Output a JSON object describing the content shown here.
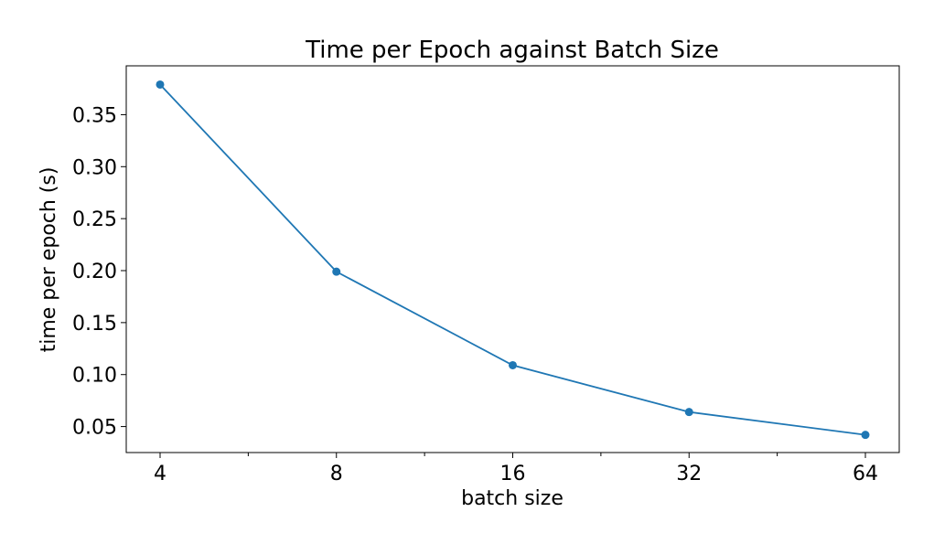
{
  "chart_data": {
    "type": "line",
    "title": "Time per Epoch against Batch Size",
    "xlabel": "batch size",
    "ylabel": "time per epoch (s)",
    "x_scale": "log2",
    "x": [
      4,
      8,
      16,
      32,
      64
    ],
    "x_tick_labels": [
      "4",
      "8",
      "16",
      "32",
      "64"
    ],
    "y_ticks": [
      0.05,
      0.1,
      0.15,
      0.2,
      0.25,
      0.3,
      0.35
    ],
    "y_tick_labels": [
      "0.05",
      "0.10",
      "0.15",
      "0.20",
      "0.25",
      "0.30",
      "0.35"
    ],
    "ylim": [
      0.025,
      0.397
    ],
    "series": [
      {
        "values": [
          0.379,
          0.199,
          0.109,
          0.064,
          0.042
        ],
        "color": "#1f77b4",
        "marker": "circle"
      }
    ],
    "grid": false,
    "legend": "none"
  }
}
